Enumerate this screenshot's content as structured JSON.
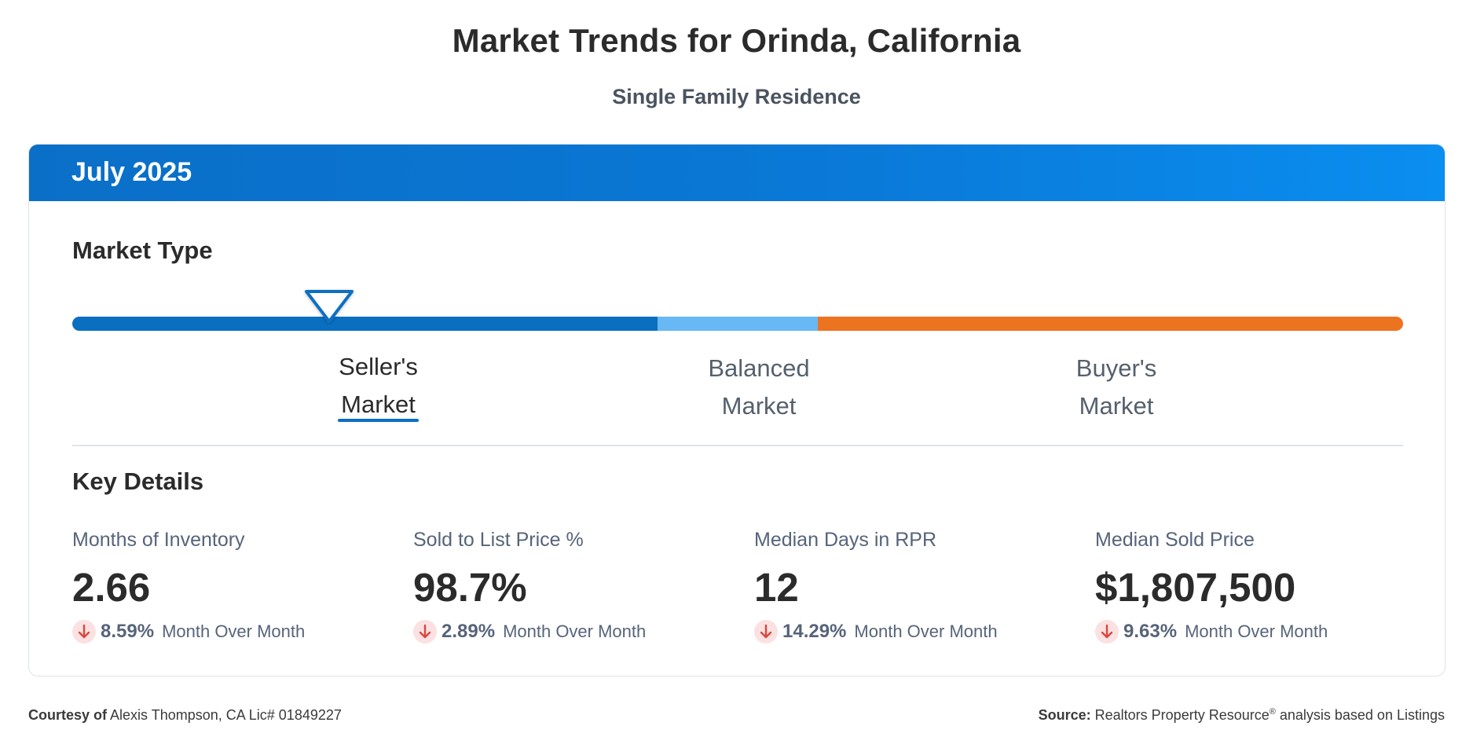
{
  "header": {
    "title": "Market Trends for Orinda, California",
    "subtitle": "Single Family Residence"
  },
  "card": {
    "period": "July 2025",
    "market_type": {
      "heading": "Market Type",
      "markets": [
        {
          "line1": "Seller's",
          "line2": "Market",
          "color": "#0a6fc1",
          "active": true
        },
        {
          "line1": "Balanced",
          "line2": "Market",
          "color": "#67b8f4",
          "active": false
        },
        {
          "line1": "Buyer's",
          "line2": "Market",
          "color": "#ec7320",
          "active": false
        }
      ],
      "indicator_position": 0.224
    },
    "key_details": {
      "heading": "Key Details",
      "metrics": [
        {
          "label": "Months of Inventory",
          "value": "2.66",
          "change": "8.59%",
          "change_label": "Month Over Month",
          "direction": "down"
        },
        {
          "label": "Sold to List Price %",
          "value": "98.7%",
          "change": "2.89%",
          "change_label": "Month Over Month",
          "direction": "down"
        },
        {
          "label": "Median Days in RPR",
          "value": "12",
          "change": "14.29%",
          "change_label": "Month Over Month",
          "direction": "down"
        },
        {
          "label": "Median Sold Price",
          "value": "$1,807,500",
          "change": "9.63%",
          "change_label": "Month Over Month",
          "direction": "down"
        }
      ]
    }
  },
  "footer": {
    "courtesy_label": "Courtesy of",
    "courtesy_text": "Alexis Thompson, CA Lic# 01849227",
    "source_label": "Source:",
    "source_name": "Realtors Property Resource",
    "source_mark": "®",
    "source_text": "analysis based on Listings"
  },
  "colors": {
    "header_blue": "#0a78d6",
    "seller_blue": "#0a6fc1",
    "balanced_blue": "#67b8f4",
    "buyer_orange": "#ec7320",
    "down_red": "#d9473f"
  },
  "icons": {
    "indicator": "triangle-down-outline-icon",
    "change": "arrow-down-icon"
  }
}
